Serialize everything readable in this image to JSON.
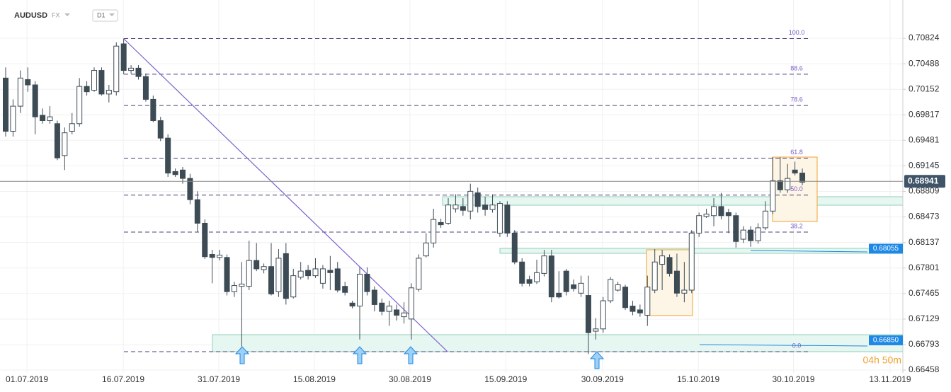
{
  "header": {
    "symbol": "AUDUSD",
    "market": "FX",
    "timeframe": "D1"
  },
  "chart_data": {
    "type": "candlestick",
    "candles": [
      [
        0.703,
        0.7044,
        0.6953,
        0.696
      ],
      [
        0.696,
        0.7002,
        0.6953,
        0.6993
      ],
      [
        0.6993,
        0.704,
        0.6984,
        0.703
      ],
      [
        0.7028,
        0.7044,
        0.7012,
        0.7021
      ],
      [
        0.7021,
        0.7026,
        0.6956,
        0.6979
      ],
      [
        0.6981,
        0.699,
        0.697,
        0.6974
      ],
      [
        0.6974,
        0.6993,
        0.697,
        0.6979
      ],
      [
        0.697,
        0.6974,
        0.6922,
        0.6925
      ],
      [
        0.6928,
        0.6965,
        0.6909,
        0.6958
      ],
      [
        0.696,
        0.6984,
        0.6956,
        0.697
      ],
      [
        0.697,
        0.703,
        0.6966,
        0.7019
      ],
      [
        0.7019,
        0.7026,
        0.7007,
        0.7012
      ],
      [
        0.7014,
        0.7044,
        0.7012,
        0.704
      ],
      [
        0.704,
        0.7044,
        0.7007,
        0.7009
      ],
      [
        0.7009,
        0.7021,
        0.6998,
        0.7014
      ],
      [
        0.7012,
        0.7077,
        0.7007,
        0.7072
      ],
      [
        0.7075,
        0.7082,
        0.7035,
        0.704
      ],
      [
        0.704,
        0.7047,
        0.7036,
        0.7043
      ],
      [
        0.7043,
        0.7047,
        0.7028,
        0.7032
      ],
      [
        0.7032,
        0.7036,
        0.6999,
        0.7002
      ],
      [
        0.7002,
        0.7007,
        0.6972,
        0.6974
      ],
      [
        0.6974,
        0.6979,
        0.6947,
        0.6951
      ],
      [
        0.6951,
        0.6956,
        0.69,
        0.6905
      ],
      [
        0.6907,
        0.6911,
        0.69,
        0.6903
      ],
      [
        0.6909,
        0.6913,
        0.6891,
        0.6898
      ],
      [
        0.6898,
        0.6904,
        0.6864,
        0.687
      ],
      [
        0.687,
        0.6881,
        0.6827,
        0.6839
      ],
      [
        0.6839,
        0.6844,
        0.6792,
        0.6795
      ],
      [
        0.6798,
        0.6804,
        0.676,
        0.6794
      ],
      [
        0.6794,
        0.6804,
        0.679,
        0.6797
      ],
      [
        0.6794,
        0.6798,
        0.6744,
        0.6749
      ],
      [
        0.6749,
        0.6762,
        0.6742,
        0.6757
      ],
      [
        0.6756,
        0.6788,
        0.6677,
        0.6759
      ],
      [
        0.6756,
        0.6816,
        0.6751,
        0.679
      ],
      [
        0.679,
        0.6813,
        0.6776,
        0.6779
      ],
      [
        0.6778,
        0.6786,
        0.6773,
        0.6782
      ],
      [
        0.6782,
        0.6813,
        0.6744,
        0.6746
      ],
      [
        0.6749,
        0.6805,
        0.6742,
        0.6793
      ],
      [
        0.6799,
        0.6813,
        0.6732,
        0.674
      ],
      [
        0.6742,
        0.6779,
        0.674,
        0.677
      ],
      [
        0.6768,
        0.6788,
        0.6765,
        0.6776
      ],
      [
        0.6777,
        0.6784,
        0.6765,
        0.677
      ],
      [
        0.677,
        0.6793,
        0.6767,
        0.6779
      ],
      [
        0.676,
        0.6784,
        0.6753,
        0.6779
      ],
      [
        0.6777,
        0.6796,
        0.6751,
        0.6774
      ],
      [
        0.6779,
        0.6788,
        0.6748,
        0.6751
      ],
      [
        0.6756,
        0.6762,
        0.6744,
        0.6748
      ],
      [
        0.6734,
        0.6737,
        0.6727,
        0.673
      ],
      [
        0.673,
        0.6781,
        0.6686,
        0.6772
      ],
      [
        0.6772,
        0.6781,
        0.6744,
        0.6749
      ],
      [
        0.6751,
        0.6756,
        0.6723,
        0.6732
      ],
      [
        0.6734,
        0.674,
        0.6718,
        0.6723
      ],
      [
        0.6723,
        0.6737,
        0.6704,
        0.673
      ],
      [
        0.6725,
        0.6732,
        0.6711,
        0.6718
      ],
      [
        0.6716,
        0.6735,
        0.6707,
        0.6721
      ],
      [
        0.6713,
        0.676,
        0.6686,
        0.6754
      ],
      [
        0.6752,
        0.6798,
        0.6749,
        0.6793
      ],
      [
        0.6796,
        0.6826,
        0.6794,
        0.6813
      ],
      [
        0.6813,
        0.6858,
        0.6807,
        0.6844
      ],
      [
        0.684,
        0.6845,
        0.6833,
        0.6837
      ],
      [
        0.6839,
        0.6872,
        0.6837,
        0.6863
      ],
      [
        0.6858,
        0.6877,
        0.6853,
        0.6863
      ],
      [
        0.6861,
        0.6872,
        0.6849,
        0.6856
      ],
      [
        0.6855,
        0.6891,
        0.6844,
        0.6881
      ],
      [
        0.6879,
        0.6886,
        0.6853,
        0.6861
      ],
      [
        0.6863,
        0.6874,
        0.6849,
        0.6857
      ],
      [
        0.6857,
        0.6877,
        0.6853,
        0.6863
      ],
      [
        0.6826,
        0.6868,
        0.6821,
        0.6865
      ],
      [
        0.6863,
        0.6868,
        0.6821,
        0.6826
      ],
      [
        0.6826,
        0.683,
        0.6785,
        0.6788
      ],
      [
        0.6788,
        0.6793,
        0.6756,
        0.676
      ],
      [
        0.6765,
        0.677,
        0.6756,
        0.676
      ],
      [
        0.6762,
        0.6791,
        0.6759,
        0.6774
      ],
      [
        0.6773,
        0.6804,
        0.6769,
        0.6796
      ],
      [
        0.6796,
        0.6804,
        0.6735,
        0.6742
      ],
      [
        0.6747,
        0.6776,
        0.674,
        0.6742
      ],
      [
        0.6776,
        0.6779,
        0.6744,
        0.6749
      ],
      [
        0.6758,
        0.6765,
        0.6749,
        0.6753
      ],
      [
        0.6747,
        0.677,
        0.6742,
        0.676
      ],
      [
        0.6744,
        0.677,
        0.6667,
        0.6695
      ],
      [
        0.6697,
        0.6714,
        0.6686,
        0.67
      ],
      [
        0.67,
        0.6742,
        0.6695,
        0.6737
      ],
      [
        0.6737,
        0.6768,
        0.6734,
        0.6765
      ],
      [
        0.6751,
        0.6762,
        0.6749,
        0.6758
      ],
      [
        0.6755,
        0.6758,
        0.6725,
        0.6728
      ],
      [
        0.673,
        0.6737,
        0.6718,
        0.6723
      ],
      [
        0.6725,
        0.6732,
        0.6716,
        0.6721
      ],
      [
        0.6718,
        0.677,
        0.6704,
        0.6755
      ],
      [
        0.6751,
        0.6805,
        0.6747,
        0.6788
      ],
      [
        0.6785,
        0.6804,
        0.6751,
        0.6796
      ],
      [
        0.6794,
        0.6798,
        0.6769,
        0.6773
      ],
      [
        0.6776,
        0.6799,
        0.6742,
        0.6747
      ],
      [
        0.6747,
        0.6788,
        0.6735,
        0.6751
      ],
      [
        0.6751,
        0.683,
        0.6747,
        0.6826
      ],
      [
        0.6826,
        0.6853,
        0.6821,
        0.6849
      ],
      [
        0.6848,
        0.6858,
        0.6846,
        0.6851
      ],
      [
        0.6849,
        0.6872,
        0.6835,
        0.6861
      ],
      [
        0.6861,
        0.6879,
        0.6844,
        0.6849
      ],
      [
        0.6853,
        0.6858,
        0.6826,
        0.6849
      ],
      [
        0.6849,
        0.6853,
        0.6807,
        0.6815
      ],
      [
        0.6818,
        0.6835,
        0.6813,
        0.683
      ],
      [
        0.683,
        0.6835,
        0.6808,
        0.6816
      ],
      [
        0.6816,
        0.6839,
        0.6812,
        0.6833
      ],
      [
        0.6833,
        0.6868,
        0.683,
        0.6855
      ],
      [
        0.6855,
        0.6926,
        0.6851,
        0.6895
      ],
      [
        0.6895,
        0.6926,
        0.6879,
        0.6883
      ],
      [
        0.6883,
        0.6917,
        0.6879,
        0.6898
      ],
      [
        0.6909,
        0.692,
        0.6902,
        0.6905
      ],
      [
        0.6905,
        0.6911,
        0.6889,
        0.6893
      ]
    ],
    "up_color": "#ffffff",
    "down_color": "#3d4b55",
    "ylim": [
      0.66421,
      0.71327
    ],
    "yticks": [
      0.70824,
      0.70488,
      0.70152,
      0.69817,
      0.69481,
      0.69145,
      0.68809,
      0.68473,
      0.68137,
      0.67801,
      0.67465,
      0.67129,
      0.66793,
      0.66458
    ],
    "xticks": [
      {
        "value": 2.88,
        "label": "01.07.2019"
      },
      {
        "value": 15.94,
        "label": "16.07.2019"
      },
      {
        "value": 28.9,
        "label": "31.07.2019"
      },
      {
        "value": 41.85,
        "label": "15.08.2019"
      },
      {
        "value": 54.8,
        "label": "30.08.2019"
      },
      {
        "value": 67.8,
        "label": "15.09.2019"
      },
      {
        "value": 80.9,
        "label": "30.09.2019"
      },
      {
        "value": 93.9,
        "label": "15.10.2019"
      },
      {
        "value": 106.8,
        "label": "30.10.2019"
      },
      {
        "value": 119.9,
        "label": "13.11.2019"
      }
    ],
    "grid": true,
    "fibonacci": {
      "high": 0.7082,
      "low": 0.667,
      "color": "#4a3f7c",
      "levels": [
        {
          "value": 100,
          "label": "100.0"
        },
        88.6,
        78.6,
        61.8,
        {
          "value": 50,
          "label": "50.0"
        },
        38.2,
        {
          "value": 0,
          "label": "0.0"
        }
      ]
    },
    "current_price": 0.68941,
    "price_labels": [
      {
        "value": 0.68055,
        "label": "0.68055"
      },
      {
        "value": 0.6685,
        "label": "0.66850"
      }
    ],
    "countdown": "04h 50m"
  }
}
